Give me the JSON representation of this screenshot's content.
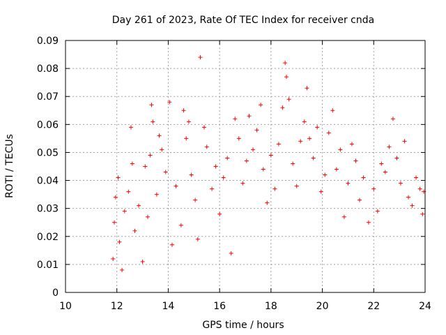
{
  "chart_data": {
    "type": "scatter",
    "title": "Day 261 of 2023, Rate Of TEC Index for receiver cnda",
    "xlabel": "GPS time / hours",
    "ylabel": "ROTI / TECUs",
    "xlim": [
      10,
      24
    ],
    "ylim": [
      0,
      0.09
    ],
    "xticks": [
      "10",
      "12",
      "14",
      "16",
      "18",
      "20",
      "22",
      "24"
    ],
    "yticks": [
      "0",
      "0.01",
      "0.02",
      "0.03",
      "0.04",
      "0.05",
      "0.06",
      "0.07",
      "0.08",
      "0.09"
    ],
    "grid": true,
    "marker": "+",
    "color": "#ff0000",
    "series": [
      {
        "values": [
          {
            "x": 11.85,
            "y": 0.012
          },
          {
            "x": 11.9,
            "y": 0.025
          },
          {
            "x": 11.95,
            "y": 0.034
          },
          {
            "x": 12.05,
            "y": 0.041
          },
          {
            "x": 12.1,
            "y": 0.018
          },
          {
            "x": 12.2,
            "y": 0.008
          },
          {
            "x": 12.3,
            "y": 0.029
          },
          {
            "x": 12.45,
            "y": 0.036
          },
          {
            "x": 12.55,
            "y": 0.059
          },
          {
            "x": 12.6,
            "y": 0.046
          },
          {
            "x": 12.7,
            "y": 0.022
          },
          {
            "x": 12.85,
            "y": 0.031
          },
          {
            "x": 13.0,
            "y": 0.011
          },
          {
            "x": 13.1,
            "y": 0.045
          },
          {
            "x": 13.2,
            "y": 0.027
          },
          {
            "x": 13.3,
            "y": 0.049
          },
          {
            "x": 13.35,
            "y": 0.067
          },
          {
            "x": 13.4,
            "y": 0.061
          },
          {
            "x": 13.55,
            "y": 0.035
          },
          {
            "x": 13.65,
            "y": 0.056
          },
          {
            "x": 13.75,
            "y": 0.051
          },
          {
            "x": 13.9,
            "y": 0.043
          },
          {
            "x": 14.05,
            "y": 0.068
          },
          {
            "x": 14.15,
            "y": 0.017
          },
          {
            "x": 14.3,
            "y": 0.038
          },
          {
            "x": 14.5,
            "y": 0.024
          },
          {
            "x": 14.6,
            "y": 0.065
          },
          {
            "x": 14.7,
            "y": 0.055
          },
          {
            "x": 14.8,
            "y": 0.061
          },
          {
            "x": 14.9,
            "y": 0.042
          },
          {
            "x": 15.05,
            "y": 0.033
          },
          {
            "x": 15.15,
            "y": 0.019
          },
          {
            "x": 15.25,
            "y": 0.084
          },
          {
            "x": 15.4,
            "y": 0.059
          },
          {
            "x": 15.5,
            "y": 0.052
          },
          {
            "x": 15.7,
            "y": 0.037
          },
          {
            "x": 15.85,
            "y": 0.045
          },
          {
            "x": 16.0,
            "y": 0.028
          },
          {
            "x": 16.15,
            "y": 0.041
          },
          {
            "x": 16.3,
            "y": 0.048
          },
          {
            "x": 16.45,
            "y": 0.014
          },
          {
            "x": 16.6,
            "y": 0.062
          },
          {
            "x": 16.75,
            "y": 0.055
          },
          {
            "x": 16.9,
            "y": 0.039
          },
          {
            "x": 17.05,
            "y": 0.047
          },
          {
            "x": 17.15,
            "y": 0.063
          },
          {
            "x": 17.3,
            "y": 0.051
          },
          {
            "x": 17.45,
            "y": 0.058
          },
          {
            "x": 17.6,
            "y": 0.067
          },
          {
            "x": 17.7,
            "y": 0.044
          },
          {
            "x": 17.85,
            "y": 0.032
          },
          {
            "x": 18.0,
            "y": 0.049
          },
          {
            "x": 18.15,
            "y": 0.037
          },
          {
            "x": 18.3,
            "y": 0.053
          },
          {
            "x": 18.45,
            "y": 0.066
          },
          {
            "x": 18.55,
            "y": 0.082
          },
          {
            "x": 18.6,
            "y": 0.077
          },
          {
            "x": 18.7,
            "y": 0.069
          },
          {
            "x": 18.85,
            "y": 0.046
          },
          {
            "x": 19.0,
            "y": 0.038
          },
          {
            "x": 19.15,
            "y": 0.054
          },
          {
            "x": 19.3,
            "y": 0.061
          },
          {
            "x": 19.4,
            "y": 0.073
          },
          {
            "x": 19.5,
            "y": 0.055
          },
          {
            "x": 19.65,
            "y": 0.048
          },
          {
            "x": 19.8,
            "y": 0.059
          },
          {
            "x": 19.95,
            "y": 0.036
          },
          {
            "x": 20.1,
            "y": 0.042
          },
          {
            "x": 20.25,
            "y": 0.057
          },
          {
            "x": 20.4,
            "y": 0.065
          },
          {
            "x": 20.55,
            "y": 0.044
          },
          {
            "x": 20.7,
            "y": 0.051
          },
          {
            "x": 20.85,
            "y": 0.027
          },
          {
            "x": 21.0,
            "y": 0.039
          },
          {
            "x": 21.15,
            "y": 0.053
          },
          {
            "x": 21.3,
            "y": 0.047
          },
          {
            "x": 21.45,
            "y": 0.033
          },
          {
            "x": 21.6,
            "y": 0.041
          },
          {
            "x": 21.8,
            "y": 0.025
          },
          {
            "x": 22.0,
            "y": 0.037
          },
          {
            "x": 22.15,
            "y": 0.029
          },
          {
            "x": 22.3,
            "y": 0.046
          },
          {
            "x": 22.45,
            "y": 0.043
          },
          {
            "x": 22.6,
            "y": 0.052
          },
          {
            "x": 22.75,
            "y": 0.062
          },
          {
            "x": 22.9,
            "y": 0.048
          },
          {
            "x": 23.05,
            "y": 0.039
          },
          {
            "x": 23.2,
            "y": 0.054
          },
          {
            "x": 23.35,
            "y": 0.034
          },
          {
            "x": 23.5,
            "y": 0.031
          },
          {
            "x": 23.65,
            "y": 0.041
          },
          {
            "x": 23.8,
            "y": 0.037
          },
          {
            "x": 23.9,
            "y": 0.028
          },
          {
            "x": 23.95,
            "y": 0.036
          }
        ]
      }
    ]
  }
}
